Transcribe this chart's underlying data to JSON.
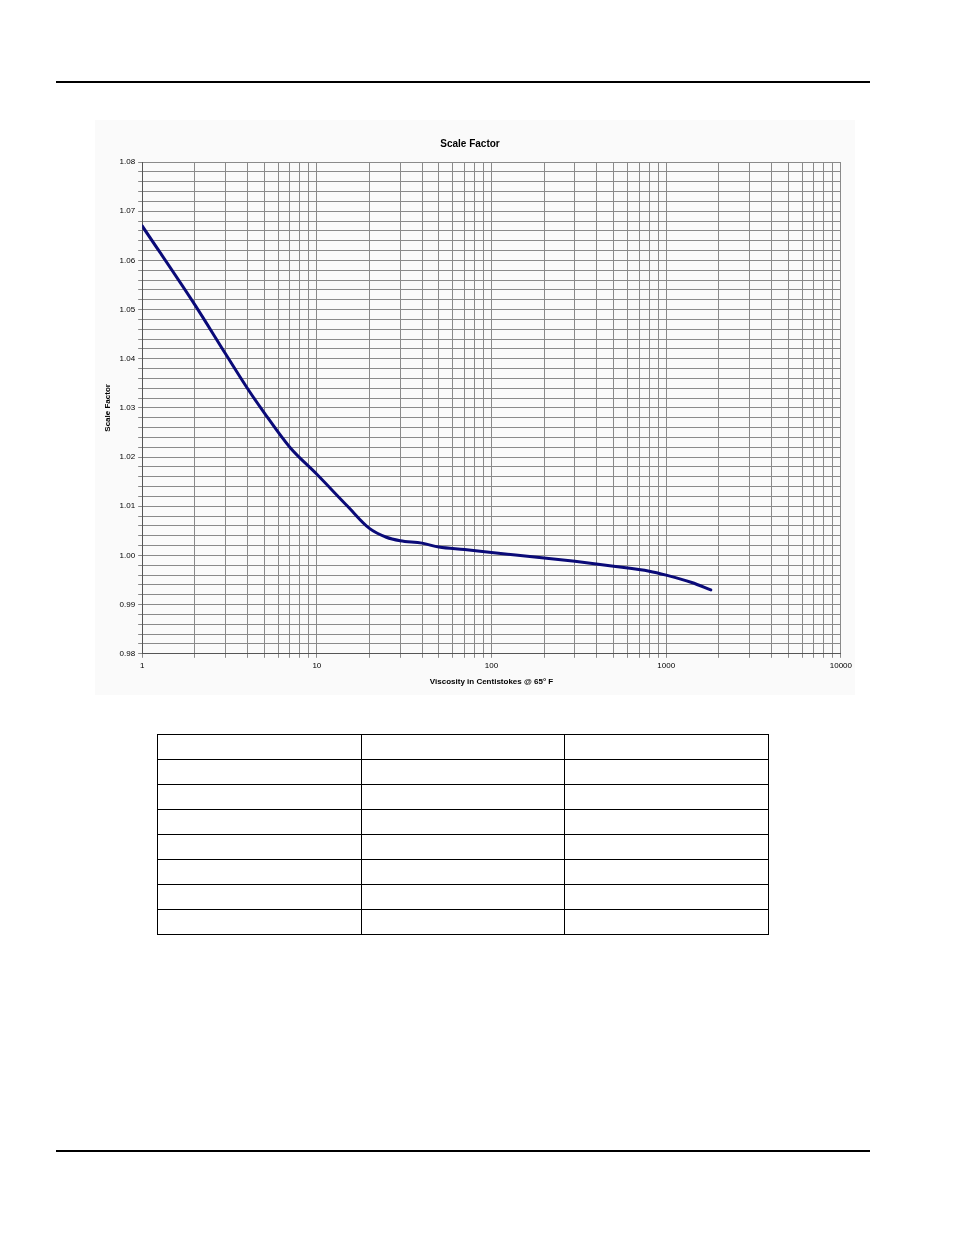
{
  "chart_data": {
    "type": "line",
    "title": "Scale Factor",
    "xlabel": "Viscosity in Centistokes @ 65° F",
    "ylabel": "Scale Factor",
    "log": "x",
    "grid": true,
    "legend": false,
    "xlim": [
      1,
      10000
    ],
    "xticks": [
      1,
      {
        "value": 2,
        "label": null
      },
      {
        "value": 3,
        "label": null
      },
      {
        "value": 4,
        "label": null
      },
      {
        "value": 5,
        "label": null
      },
      {
        "value": 6,
        "label": null
      },
      {
        "value": 7,
        "label": null
      },
      {
        "value": 8,
        "label": null
      },
      {
        "value": 9,
        "label": null
      },
      10,
      {
        "value": 20,
        "label": null
      },
      {
        "value": 30,
        "label": null
      },
      {
        "value": 40,
        "label": null
      },
      {
        "value": 50,
        "label": null
      },
      {
        "value": 60,
        "label": null
      },
      {
        "value": 70,
        "label": null
      },
      {
        "value": 80,
        "label": null
      },
      {
        "value": 90,
        "label": null
      },
      100,
      {
        "value": 200,
        "label": null
      },
      {
        "value": 300,
        "label": null
      },
      {
        "value": 400,
        "label": null
      },
      {
        "value": 500,
        "label": null
      },
      {
        "value": 600,
        "label": null
      },
      {
        "value": 700,
        "label": null
      },
      {
        "value": 800,
        "label": null
      },
      {
        "value": 900,
        "label": null
      },
      1000,
      {
        "value": 2000,
        "label": null
      },
      {
        "value": 3000,
        "label": null
      },
      {
        "value": 4000,
        "label": null
      },
      {
        "value": 5000,
        "label": null
      },
      {
        "value": 6000,
        "label": null
      },
      {
        "value": 7000,
        "label": null
      },
      {
        "value": 8000,
        "label": null
      },
      {
        "value": 9000,
        "label": null
      },
      10000
    ],
    "ylim": [
      0.98,
      1.08
    ],
    "yticks": [
      0.98,
      {
        "value": 0.982,
        "label": null
      },
      {
        "value": 0.984,
        "label": null
      },
      {
        "value": 0.986,
        "label": null
      },
      {
        "value": 0.988,
        "label": null
      },
      0.99,
      {
        "value": 0.992,
        "label": null
      },
      {
        "value": 0.994,
        "label": null
      },
      {
        "value": 0.996,
        "label": null
      },
      {
        "value": 0.998,
        "label": null
      },
      {
        "value": 1,
        "label": "1.00"
      },
      {
        "value": 1.002,
        "label": null
      },
      {
        "value": 1.004,
        "label": null
      },
      {
        "value": 1.006,
        "label": null
      },
      {
        "value": 1.008,
        "label": null
      },
      1.01,
      {
        "value": 1.012,
        "label": null
      },
      {
        "value": 1.014,
        "label": null
      },
      {
        "value": 1.016,
        "label": null
      },
      {
        "value": 1.018,
        "label": null
      },
      1.02,
      {
        "value": 1.022,
        "label": null
      },
      {
        "value": 1.024,
        "label": null
      },
      {
        "value": 1.026,
        "label": null
      },
      {
        "value": 1.028,
        "label": null
      },
      1.03,
      {
        "value": 1.032,
        "label": null
      },
      {
        "value": 1.034,
        "label": null
      },
      {
        "value": 1.036,
        "label": null
      },
      {
        "value": 1.038,
        "label": null
      },
      1.04,
      {
        "value": 1.042,
        "label": null
      },
      {
        "value": 1.044,
        "label": null
      },
      {
        "value": 1.046,
        "label": null
      },
      {
        "value": 1.048,
        "label": null
      },
      1.05,
      {
        "value": 1.052,
        "label": null
      },
      {
        "value": 1.054,
        "label": null
      },
      {
        "value": 1.056,
        "label": null
      },
      {
        "value": 1.058,
        "label": null
      },
      1.06,
      {
        "value": 1.062,
        "label": null
      },
      {
        "value": 1.064,
        "label": null
      },
      {
        "value": 1.066,
        "label": null
      },
      {
        "value": 1.068,
        "label": null
      },
      1.07,
      {
        "value": 1.072,
        "label": null
      },
      {
        "value": 1.074,
        "label": null
      },
      {
        "value": 1.076,
        "label": null
      },
      {
        "value": 1.078,
        "label": null
      },
      1.08
    ],
    "x": [
      1,
      2,
      3,
      4,
      5,
      7,
      10,
      15,
      20,
      25,
      30,
      40,
      50,
      70,
      100,
      200,
      300,
      500,
      800,
      1000,
      1400,
      1800
    ],
    "series": [
      {
        "color": "#0a0a78",
        "values": [
          1.067,
          1.051,
          1.041,
          1.034,
          1.029,
          1.022,
          1.0165,
          1.01,
          1.0055,
          1.0037,
          1.003,
          1.0025,
          1.0017,
          1.0012,
          1.0006,
          0.9995,
          0.9988,
          0.9978,
          0.9968,
          0.996,
          0.9945,
          0.993
        ]
      }
    ]
  }
}
